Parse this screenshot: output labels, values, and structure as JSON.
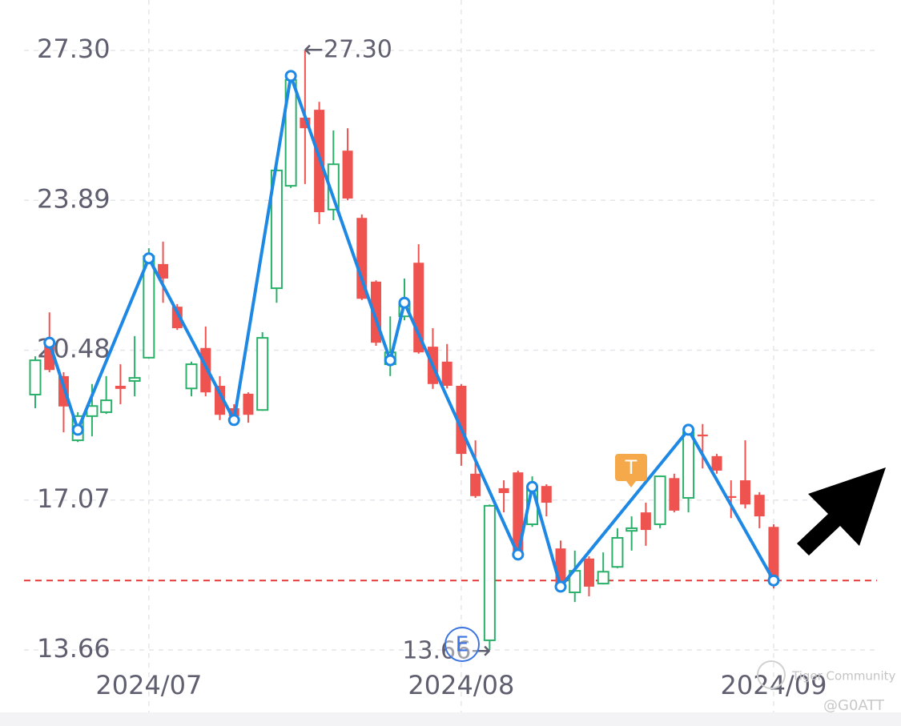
{
  "chart_data": {
    "type": "candlestick",
    "categories": [
      null,
      null,
      null,
      null,
      null,
      null,
      null,
      null,
      "2024/07",
      null,
      null,
      null,
      null,
      null,
      null,
      null,
      null,
      null,
      null,
      null,
      null,
      null,
      null,
      null,
      null,
      null,
      null,
      null,
      null,
      null,
      "2024/08",
      null,
      null,
      null,
      null,
      null,
      null,
      null,
      null,
      null,
      null,
      null,
      null,
      null,
      null,
      null,
      null,
      null,
      null,
      null,
      null,
      null,
      "2024/09"
    ],
    "open": [
      19.47,
      20.62,
      19.89,
      18.43,
      18.98,
      19.07,
      19.67,
      19.78,
      20.31,
      22.44,
      21.47,
      19.61,
      20.53,
      19.67,
      19.16,
      19.49,
      19.12,
      21.89,
      24.22,
      25.77,
      25.95,
      23.68,
      25.02,
      23.49,
      22.04,
      20.16,
      21.25,
      22.47,
      20.56,
      20.22,
      19.67,
      17.67,
      13.88,
      17.34,
      17.7,
      16.52,
      17.39,
      15.97,
      14.97,
      15.74,
      15.17,
      15.55,
      16.37,
      16.79,
      16.52,
      17.57,
      17.12,
      18.56,
      18.07,
      17.16,
      17.52,
      17.19,
      16.46
    ],
    "close": [
      20.25,
      20.03,
      19.2,
      18.98,
      19.21,
      19.34,
      19.6,
      19.85,
      22.62,
      22.11,
      20.98,
      20.16,
      19.52,
      19.01,
      18.98,
      19.01,
      20.76,
      24.57,
      26.63,
      25.53,
      23.62,
      24.71,
      23.93,
      21.65,
      20.65,
      20.43,
      21.53,
      20.43,
      19.71,
      19.67,
      18.12,
      17.16,
      16.94,
      17.23,
      15.83,
      17.37,
      17.01,
      15.06,
      15.46,
      15.1,
      15.44,
      16.21,
      16.43,
      16.39,
      17.61,
      16.83,
      18.61,
      18.52,
      17.74,
      17.12,
      16.97,
      16.7,
      15.24
    ],
    "high": [
      20.34,
      21.34,
      19.98,
      19.07,
      19.71,
      19.89,
      20.16,
      20.8,
      22.8,
      22.95,
      21.53,
      20.22,
      21.02,
      19.89,
      19.25,
      19.52,
      20.89,
      24.71,
      26.72,
      27.3,
      26.13,
      25.48,
      25.53,
      23.57,
      22.07,
      21.25,
      22.11,
      22.89,
      20.98,
      20.62,
      19.71,
      18.43,
      16.97,
      17.52,
      17.74,
      17.61,
      17.43,
      16.15,
      15.92,
      15.79,
      15.88,
      16.43,
      16.7,
      17.01,
      17.63,
      17.67,
      18.65,
      18.8,
      18.12,
      17.52,
      18.43,
      17.25,
      16.52
    ],
    "low": [
      19.16,
      19.98,
      18.61,
      18.39,
      18.52,
      19.03,
      19.25,
      19.43,
      20.29,
      21.56,
      20.94,
      19.43,
      19.43,
      18.89,
      18.85,
      18.83,
      19.1,
      21.56,
      24.17,
      24.26,
      23.35,
      23.44,
      23.89,
      21.62,
      20.58,
      19.89,
      21.16,
      20.4,
      19.6,
      19.61,
      17.85,
      17.12,
      13.66,
      16.79,
      15.79,
      16.46,
      16.7,
      15.03,
      14.75,
      14.88,
      15.15,
      15.52,
      15.92,
      16.03,
      16.43,
      16.79,
      16.79,
      17.79,
      17.67,
      16.66,
      16.88,
      16.43,
      15.06
    ],
    "up_color": "#2bb06a",
    "down_color": "#ef5350",
    "zigzag": {
      "color": "#1e88e5",
      "index": [
        1,
        3,
        8,
        14,
        18,
        25,
        26,
        34,
        35,
        37,
        46,
        52
      ],
      "values": [
        20.65,
        18.67,
        22.57,
        18.89,
        26.72,
        20.25,
        21.56,
        15.83,
        17.37,
        15.1,
        18.67,
        15.24
      ]
    },
    "high_label": "←27.30",
    "low_label": "13.66→",
    "price_line_color": "#e53935",
    "ylim": [
      13.66,
      27.3
    ],
    "yticks": [
      {
        "value": 27.3,
        "label": "27.30"
      },
      23.89,
      20.48,
      17.07,
      13.66
    ],
    "grid": true
  },
  "event_marks": {
    "earnings": "E",
    "trade": "T"
  },
  "watermark": {
    "brand": "Tiger Community",
    "user": "@G0ATT"
  }
}
